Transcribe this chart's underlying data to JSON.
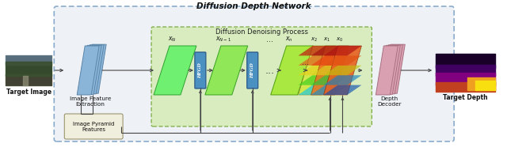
{
  "title": "Diffusion Depth Network",
  "subtitle_inner": "Diffusion Denoising Process",
  "outer_box_color": "#8aabcc",
  "inner_box_color": "#d8ecc0",
  "inner_box_border": "#7aaa40",
  "labels": {
    "target_image": "Target Image",
    "target_depth": "Target Depth",
    "image_feature": "Image Feature\nExtraction",
    "depth_decoder": "Depth\nDecoder",
    "image_pyramid": "Image Pyramid\nFeatures"
  },
  "hfgd_color": "#4a90c0",
  "hfgd_text_color": "#ffffff",
  "encoder_color": "#8ab4d8",
  "encoder_edge": "#5a84a8",
  "decoder_color": "#d8a0b0",
  "decoder_edge": "#a87080",
  "arrow_color": "#444444",
  "green_light": "#80f070",
  "green_dark": "#40c840",
  "heatmap_colors": [
    "#20d0e0",
    "#40c030",
    "#f0c020",
    "#e04010",
    "#c02020"
  ],
  "pyramid_box_color": "#f0eedc",
  "pyramid_box_edge": "#908860"
}
